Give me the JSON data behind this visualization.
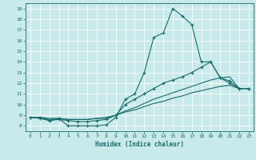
{
  "xlabel": "Humidex (Indice chaleur)",
  "xlim": [
    -0.5,
    23.5
  ],
  "ylim": [
    7.5,
    19.5
  ],
  "xticks": [
    0,
    1,
    2,
    3,
    4,
    5,
    6,
    7,
    8,
    9,
    10,
    11,
    12,
    13,
    14,
    15,
    16,
    17,
    18,
    19,
    20,
    21,
    22,
    23
  ],
  "yticks": [
    8,
    9,
    10,
    11,
    12,
    13,
    14,
    15,
    16,
    17,
    18,
    19
  ],
  "bg_color": "#c8eaea",
  "line_color": "#1a6b6b",
  "grid_color": "#d8eded",
  "line1_x": [
    0,
    1,
    2,
    3,
    4,
    5,
    6,
    7,
    8,
    9,
    10,
    11,
    12,
    13,
    14,
    15,
    16,
    17,
    18,
    19,
    20,
    21,
    22,
    23
  ],
  "line1_y": [
    8.8,
    8.8,
    8.5,
    8.7,
    8.0,
    8.0,
    8.0,
    8.0,
    8.1,
    8.8,
    10.5,
    11.0,
    13.0,
    16.3,
    16.7,
    19.0,
    18.3,
    17.5,
    14.0,
    14.0,
    12.5,
    12.0,
    11.5,
    11.5
  ],
  "line2_x": [
    0,
    1,
    2,
    3,
    4,
    5,
    6,
    7,
    8,
    9,
    10,
    11,
    12,
    13,
    14,
    15,
    16,
    17,
    18,
    19,
    20,
    21,
    22,
    23
  ],
  "line2_y": [
    8.8,
    8.7,
    8.5,
    8.6,
    8.5,
    8.4,
    8.4,
    8.5,
    8.6,
    9.0,
    10.0,
    10.5,
    11.0,
    11.5,
    12.0,
    12.3,
    12.6,
    13.0,
    13.5,
    14.0,
    12.5,
    12.2,
    11.5,
    11.5
  ],
  "line3_x": [
    0,
    1,
    2,
    3,
    4,
    5,
    6,
    7,
    8,
    9,
    10,
    11,
    12,
    13,
    14,
    15,
    16,
    17,
    18,
    19,
    20,
    21,
    22,
    23
  ],
  "line3_y": [
    8.8,
    8.8,
    8.6,
    8.7,
    8.6,
    8.6,
    8.6,
    8.7,
    8.7,
    9.0,
    9.4,
    9.7,
    10.1,
    10.5,
    10.8,
    11.1,
    11.4,
    11.7,
    12.0,
    12.3,
    12.5,
    12.6,
    11.5,
    11.5
  ],
  "line4_x": [
    0,
    1,
    2,
    3,
    4,
    5,
    6,
    7,
    8,
    9,
    10,
    11,
    12,
    13,
    14,
    15,
    16,
    17,
    18,
    19,
    20,
    21,
    22,
    23
  ],
  "line4_y": [
    8.8,
    8.8,
    8.7,
    8.7,
    8.6,
    8.6,
    8.6,
    8.7,
    8.8,
    9.0,
    9.3,
    9.5,
    9.8,
    10.1,
    10.3,
    10.6,
    10.8,
    11.1,
    11.3,
    11.5,
    11.7,
    11.8,
    11.5,
    11.5
  ]
}
